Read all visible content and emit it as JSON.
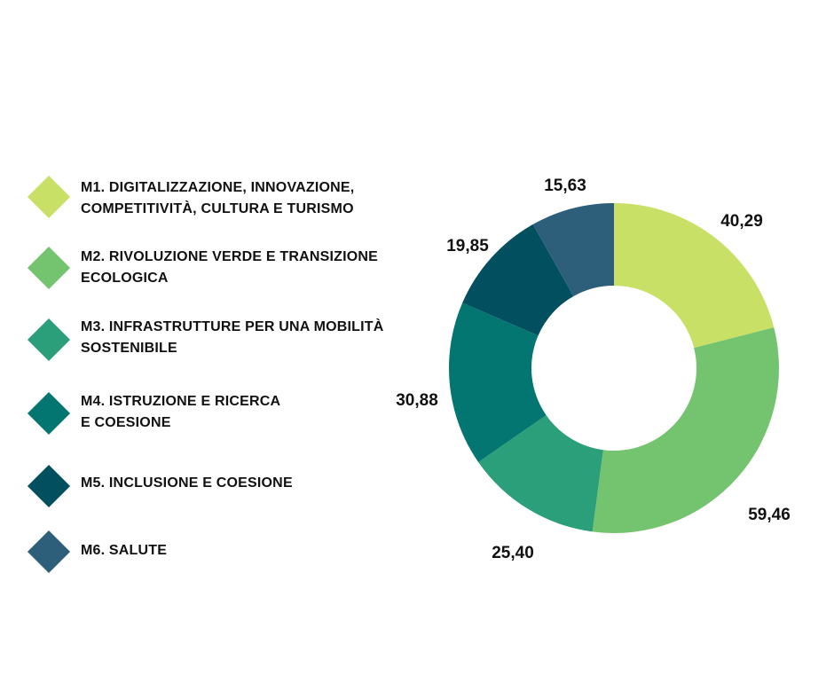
{
  "chart_data": {
    "type": "pie",
    "variant": "donut",
    "title": "",
    "categories": [
      "M1. DIGITALIZZAZIONE, INNOVAZIONE,\nCOMPETITIVITÀ, CULTURA E TURISMO",
      "M2. RIVOLUZIONE VERDE E TRANSIZIONE\nECOLOGICA",
      "M3. INFRASTRUTTURE PER UNA MOBILITÀ\nSOSTENIBILE",
      "M4. ISTRUZIONE E RICERCA\n E COESIONE",
      "M5. INCLUSIONE E COESIONE",
      "M6. SALUTE"
    ],
    "values": [
      40.29,
      59.46,
      25.4,
      30.88,
      19.85,
      15.63
    ],
    "value_labels": [
      "40,29",
      "59,46",
      "25,40",
      "30,88",
      "19,85",
      "15,63"
    ],
    "colors": [
      "#c8e065",
      "#74c36e",
      "#2b9e7a",
      "#037671",
      "#024f5f",
      "#2e5f7a"
    ],
    "legend_position": "left"
  }
}
